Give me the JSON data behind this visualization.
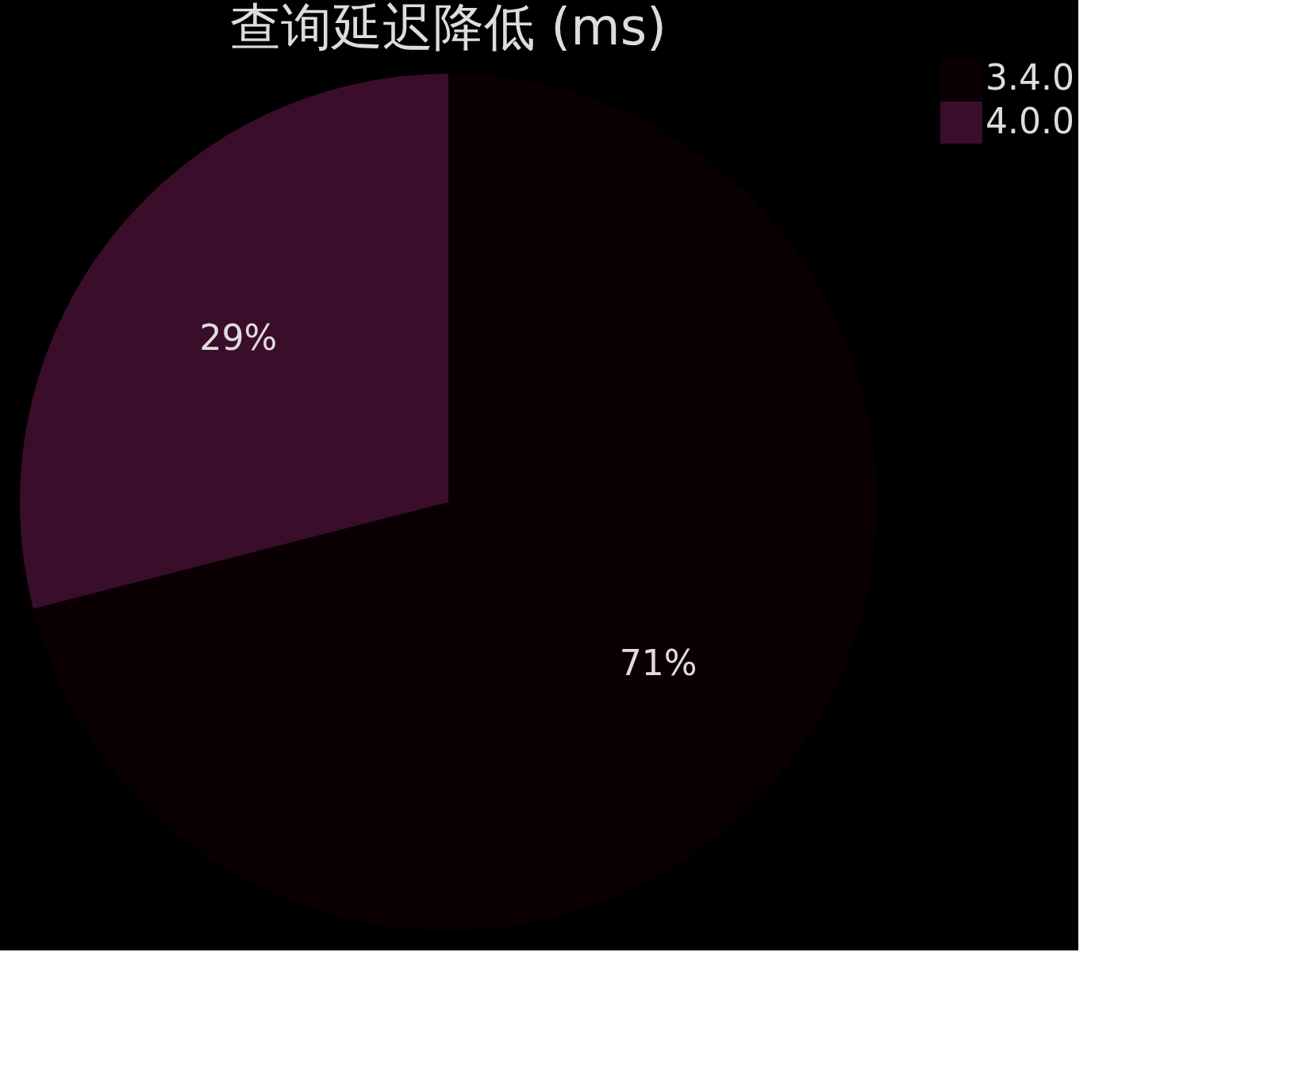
{
  "chart_data": {
    "type": "pie",
    "title": "查询延迟降低 (ms)",
    "categories": [
      "3.4.0",
      "4.0.0"
    ],
    "values": [
      71,
      29
    ],
    "value_labels": [
      "71%",
      "29%"
    ],
    "colors": [
      "#0a0004",
      "#3a0d2a"
    ],
    "legend": "right"
  }
}
